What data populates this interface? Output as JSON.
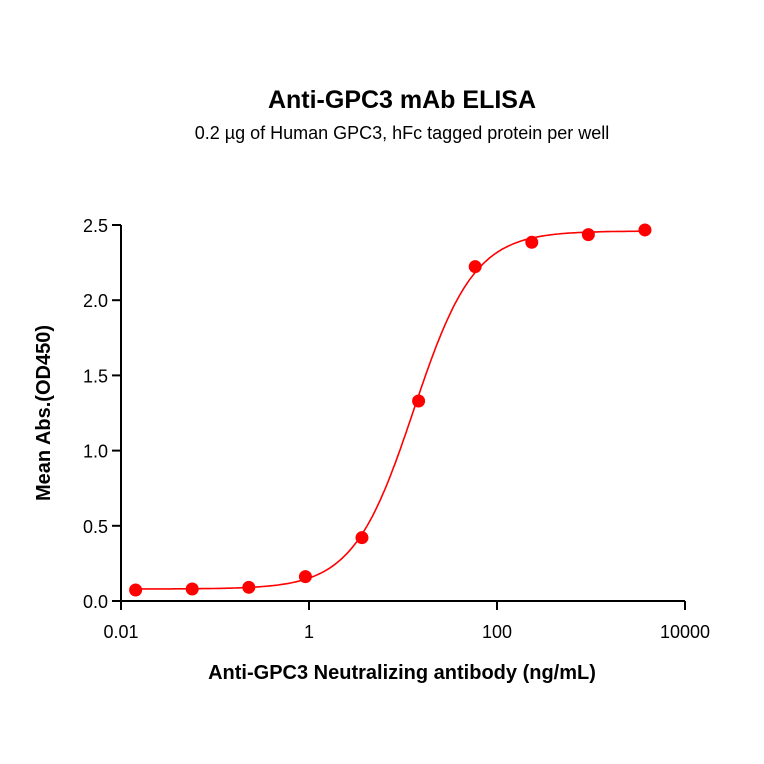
{
  "chart_data": {
    "type": "scatter",
    "title": "Anti-GPC3 mAb ELISA",
    "subtitle": "0.2 µg of Human GPC3, hFc tagged protein per well",
    "xlabel": "Anti-GPC3 Neutralizing antibody (ng/mL)",
    "ylabel": "Mean Abs.(OD450)",
    "xscale": "log",
    "xlim": [
      0.01,
      10000
    ],
    "ylim": [
      0,
      2.5
    ],
    "xticks": [
      "0.01",
      "1",
      "100",
      "10000"
    ],
    "yticks": [
      "0.0",
      "0.5",
      "1.0",
      "1.5",
      "2.0",
      "2.5"
    ],
    "grid": false,
    "fit": "4-parameter logistic curve",
    "color": "#ff0000",
    "x": [
      0.0143,
      0.0572,
      0.229,
      0.916,
      3.66,
      14.65,
      58.6,
      234.4,
      937.5,
      3750
    ],
    "y": [
      0.073,
      0.08,
      0.091,
      0.162,
      0.421,
      1.33,
      2.223,
      2.385,
      2.436,
      2.467
    ]
  }
}
